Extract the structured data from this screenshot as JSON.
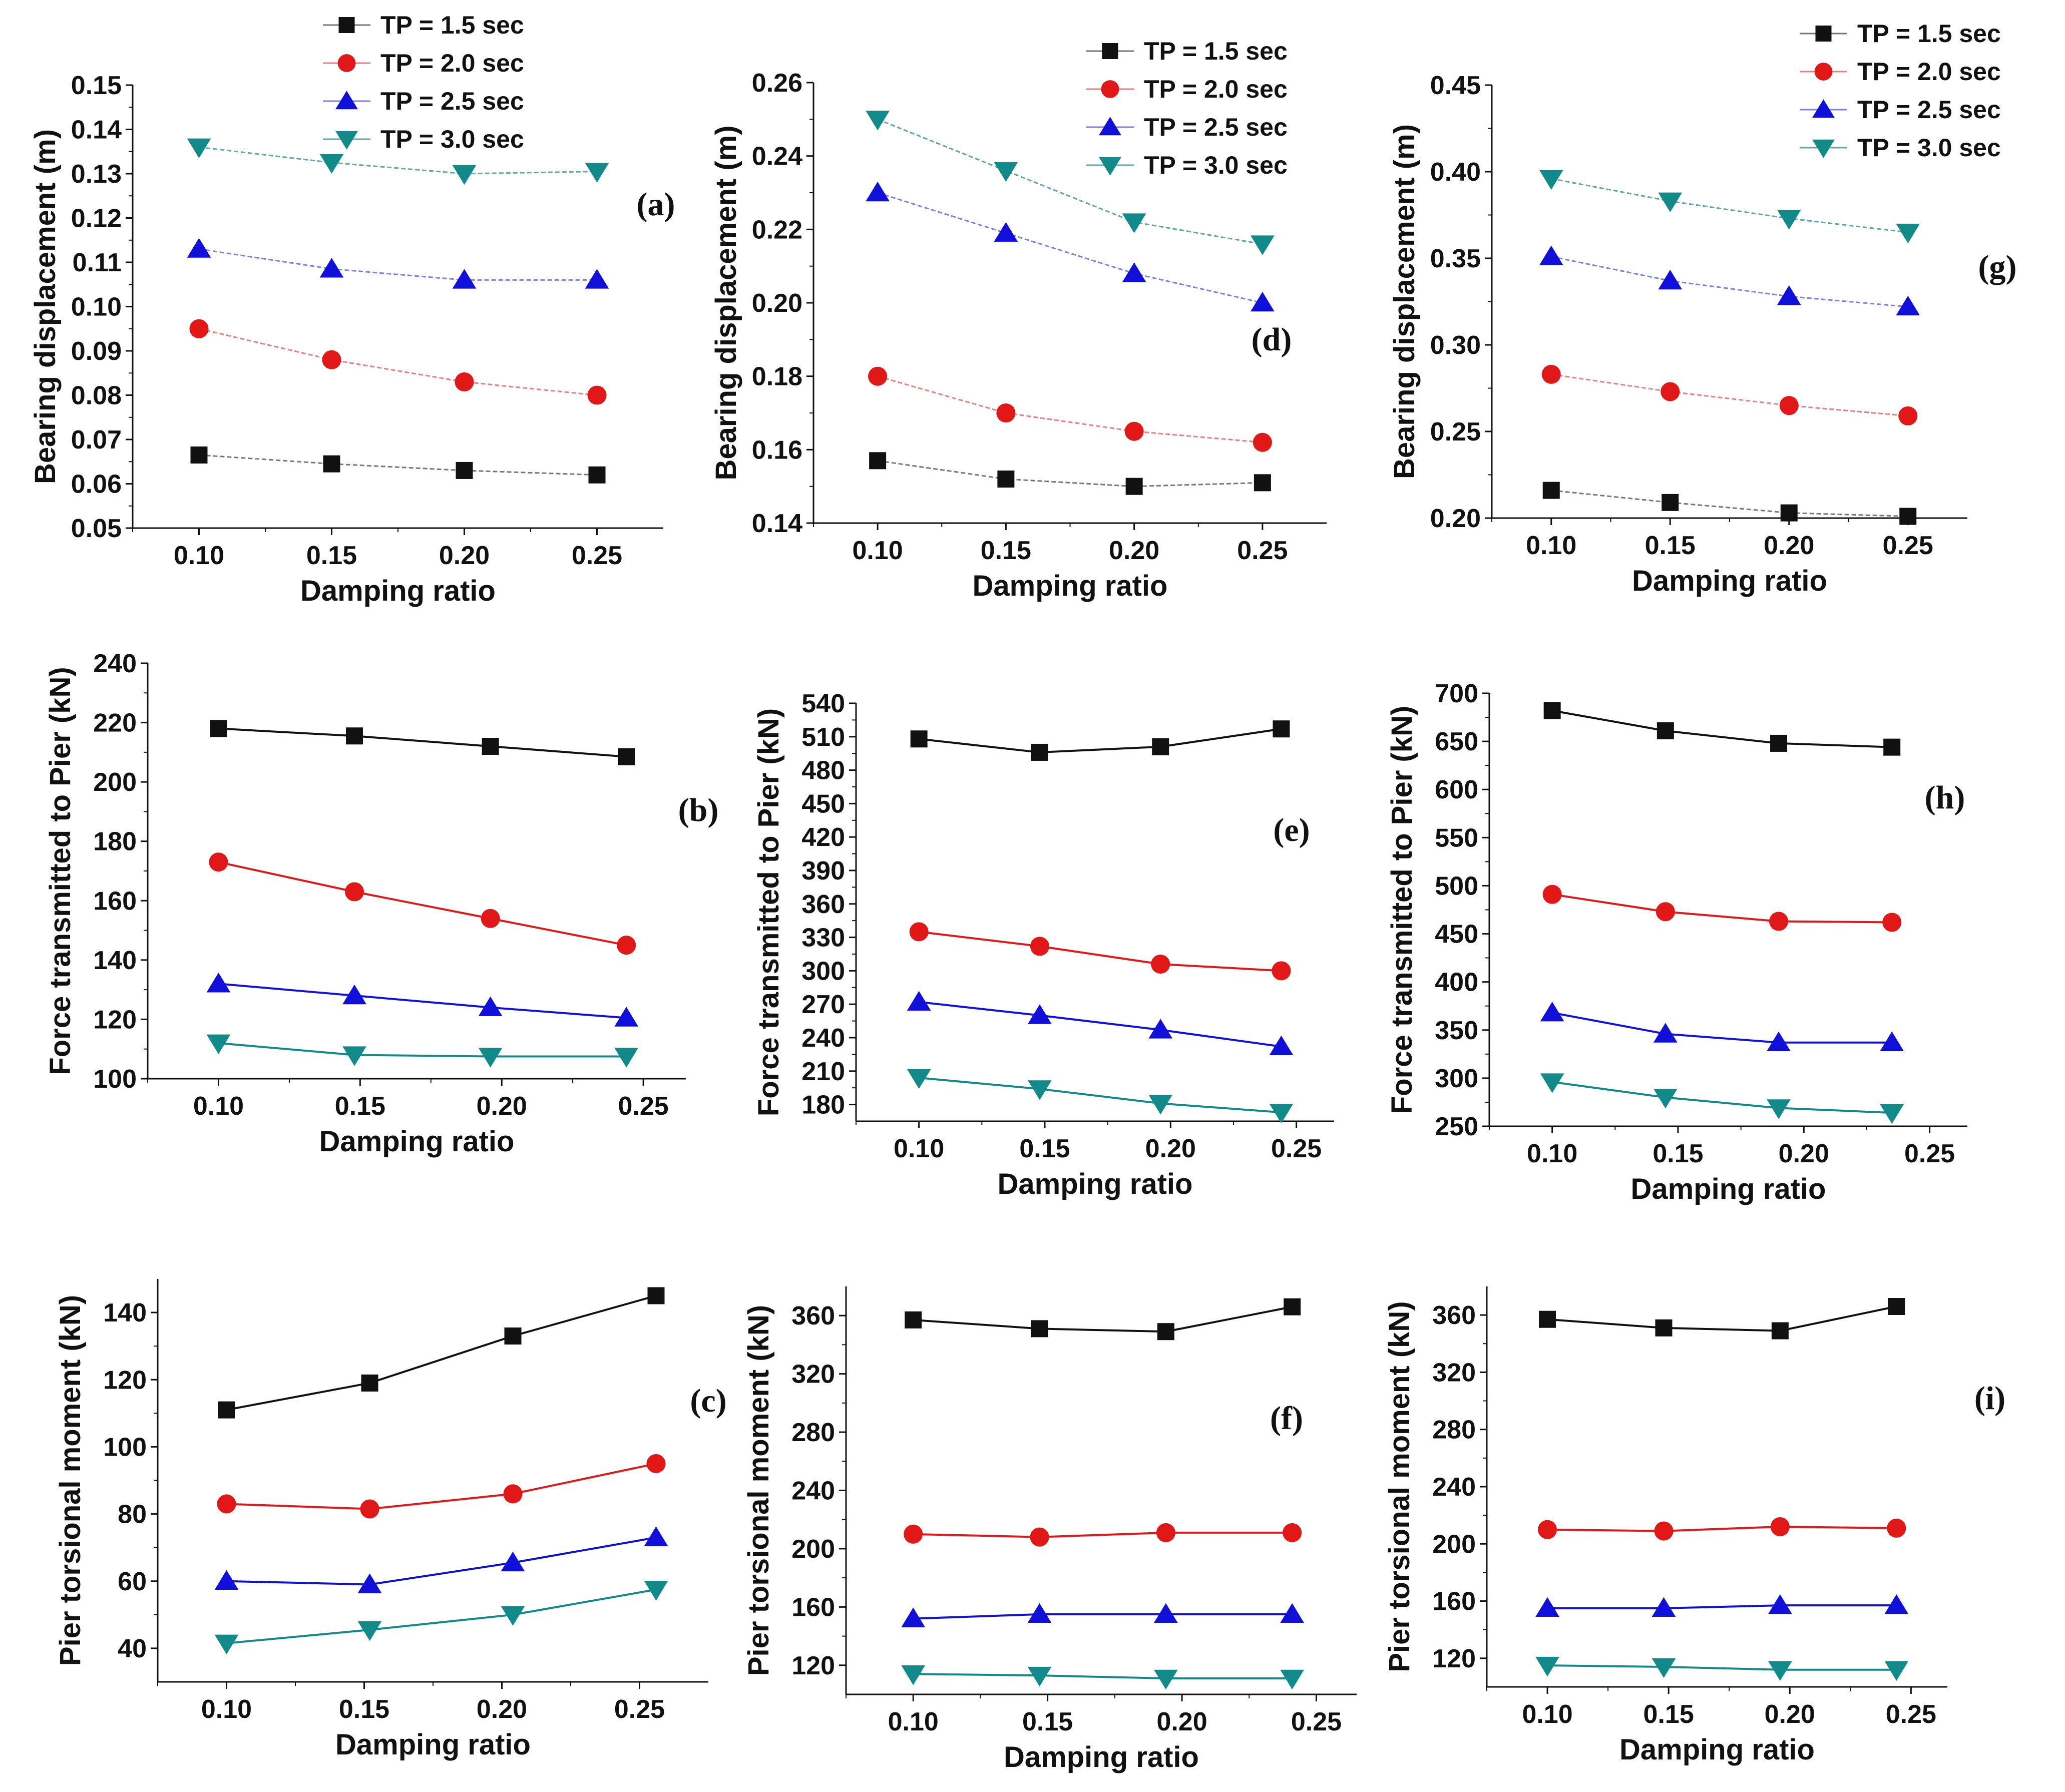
{
  "colors": {
    "s0": "#111111",
    "s1": "#e01818",
    "s2": "#1010d8",
    "s3": "#138a8a"
  },
  "markers": [
    "square",
    "circle",
    "triangle-up",
    "triangle-down"
  ],
  "chart_data": [
    {
      "id": "a",
      "type": "line",
      "panel_label": "(a)",
      "xlabel": "Damping ratio",
      "ylabel": "Bearing displacement (m)",
      "xlim": [
        0.075,
        0.275
      ],
      "ylim": [
        0.05,
        0.15
      ],
      "xticks": [
        "0.10",
        "0.15",
        "0.20",
        "0.25"
      ],
      "yticks": [
        "0.05",
        "0.06",
        "0.07",
        "0.08",
        "0.09",
        "0.10",
        "0.11",
        "0.12",
        "0.13",
        "0.14",
        "0.15"
      ],
      "x": [
        0.1,
        0.15,
        0.2,
        0.25
      ],
      "legend": [
        "TP = 1.5 sec",
        "TP = 2.0 sec",
        "TP = 2.5 sec",
        "TP = 3.0 sec"
      ],
      "series": [
        {
          "name": "TP = 1.5 sec",
          "values": [
            0.0665,
            0.0645,
            0.063,
            0.062
          ]
        },
        {
          "name": "TP = 2.0 sec",
          "values": [
            0.095,
            0.088,
            0.083,
            0.08
          ]
        },
        {
          "name": "TP = 2.5 sec",
          "values": [
            0.113,
            0.1085,
            0.106,
            0.106
          ]
        },
        {
          "name": "TP = 3.0 sec",
          "values": [
            0.136,
            0.1325,
            0.13,
            0.1305
          ]
        }
      ]
    },
    {
      "id": "d",
      "type": "line",
      "panel_label": "(d)",
      "xlabel": "Damping ratio",
      "ylabel": "Bearing displacement (m)",
      "xlim": [
        0.075,
        0.275
      ],
      "ylim": [
        0.14,
        0.26
      ],
      "xticks": [
        "0.10",
        "0.15",
        "0.20",
        "0.25"
      ],
      "yticks": [
        "0.14",
        "0.16",
        "0.18",
        "0.20",
        "0.22",
        "0.24",
        "0.26"
      ],
      "x": [
        0.1,
        0.15,
        0.2,
        0.25
      ],
      "legend": [
        "TP = 1.5 sec",
        "TP = 2.0 sec",
        "TP = 2.5 sec",
        "TP = 3.0 sec"
      ],
      "series": [
        {
          "name": "TP = 1.5 sec",
          "values": [
            0.157,
            0.152,
            0.15,
            0.151
          ]
        },
        {
          "name": "TP = 2.0 sec",
          "values": [
            0.18,
            0.17,
            0.165,
            0.162
          ]
        },
        {
          "name": "TP = 2.5 sec",
          "values": [
            0.23,
            0.219,
            0.208,
            0.2
          ]
        },
        {
          "name": "TP = 3.0 sec",
          "values": [
            0.25,
            0.236,
            0.222,
            0.216
          ]
        }
      ]
    },
    {
      "id": "g",
      "type": "line",
      "panel_label": "(g)",
      "xlabel": "Damping ratio",
      "ylabel": "Bearing displacement (m)",
      "xlim": [
        0.075,
        0.275
      ],
      "ylim": [
        0.2,
        0.45
      ],
      "xticks": [
        "0.10",
        "0.15",
        "0.20",
        "0.25"
      ],
      "yticks": [
        "0.20",
        "0.25",
        "0.30",
        "0.35",
        "0.40",
        "0.45"
      ],
      "x": [
        0.1,
        0.15,
        0.2,
        0.25
      ],
      "legend": [
        "TP = 1.5 sec",
        "TP = 2.0 sec",
        "TP = 2.5 sec",
        "TP = 3.0 sec"
      ],
      "series": [
        {
          "name": "TP = 1.5 sec",
          "values": [
            0.216,
            0.209,
            0.203,
            0.201
          ]
        },
        {
          "name": "TP = 2.0 sec",
          "values": [
            0.283,
            0.273,
            0.265,
            0.259
          ]
        },
        {
          "name": "TP = 2.5 sec",
          "values": [
            0.351,
            0.337,
            0.328,
            0.322
          ]
        },
        {
          "name": "TP = 3.0 sec",
          "values": [
            0.396,
            0.383,
            0.373,
            0.365
          ]
        }
      ]
    },
    {
      "id": "b",
      "type": "line",
      "panel_label": "(b)",
      "xlabel": "Damping ratio",
      "ylabel": "Force transmitted to Pier (kN)",
      "xlim": [
        0.075,
        0.265
      ],
      "ylim": [
        100,
        240
      ],
      "xticks": [
        "0.10",
        "0.15",
        "0.20",
        "0.25"
      ],
      "yticks": [
        "100",
        "120",
        "140",
        "160",
        "180",
        "200",
        "220",
        "240"
      ],
      "x": [
        0.1,
        0.148,
        0.196,
        0.244
      ],
      "series": [
        {
          "name": "TP = 1.5 sec",
          "values": [
            218,
            215.5,
            212,
            208.5
          ]
        },
        {
          "name": "TP = 2.0 sec",
          "values": [
            173,
            163,
            154,
            145
          ]
        },
        {
          "name": "TP = 2.5 sec",
          "values": [
            132,
            128,
            124,
            120.5
          ]
        },
        {
          "name": "TP = 3.0 sec",
          "values": [
            112,
            108,
            107.5,
            107.5
          ]
        }
      ]
    },
    {
      "id": "e",
      "type": "line",
      "panel_label": "(e)",
      "xlabel": "Damping ratio",
      "ylabel": "Force transmitted to Pier (kN)",
      "xlim": [
        0.075,
        0.265
      ],
      "ylim": [
        165,
        540
      ],
      "xticks": [
        "0.10",
        "0.15",
        "0.20",
        "0.25"
      ],
      "yticks": [
        "180",
        "210",
        "240",
        "270",
        "300",
        "330",
        "360",
        "390",
        "420",
        "450",
        "480",
        "510",
        "540"
      ],
      "x": [
        0.1,
        0.148,
        0.196,
        0.244
      ],
      "series": [
        {
          "name": "TP = 1.5 sec",
          "values": [
            508,
            496,
            501,
            517
          ]
        },
        {
          "name": "TP = 2.0 sec",
          "values": [
            335,
            322,
            306,
            300
          ]
        },
        {
          "name": "TP = 2.5 sec",
          "values": [
            272,
            260,
            247,
            232
          ]
        },
        {
          "name": "TP = 3.0 sec",
          "values": [
            204,
            194,
            181,
            173
          ]
        }
      ]
    },
    {
      "id": "h",
      "type": "line",
      "panel_label": "(h)",
      "xlabel": "Damping ratio",
      "ylabel": "Force transmitted to Pier (kN)",
      "xlim": [
        0.075,
        0.265
      ],
      "ylim": [
        250,
        700
      ],
      "xticks": [
        "0.10",
        "0.15",
        "0.20",
        "0.25"
      ],
      "yticks": [
        "250",
        "300",
        "350",
        "400",
        "450",
        "500",
        "550",
        "600",
        "650",
        "700"
      ],
      "x": [
        0.1,
        0.145,
        0.19,
        0.235
      ],
      "series": [
        {
          "name": "TP = 1.5 sec",
          "values": [
            682,
            661,
            648,
            644
          ]
        },
        {
          "name": "TP = 2.0 sec",
          "values": [
            491,
            473,
            463,
            462
          ]
        },
        {
          "name": "TP = 2.5 sec",
          "values": [
            368,
            346,
            337,
            337
          ]
        },
        {
          "name": "TP = 3.0 sec",
          "values": [
            296,
            280,
            269,
            264
          ]
        }
      ]
    },
    {
      "id": "c",
      "type": "line",
      "panel_label": "(c)",
      "xlabel": "Damping ratio",
      "ylabel": "Pier torsional moment (kN)",
      "xlim": [
        0.075,
        0.275
      ],
      "ylim": [
        30,
        150
      ],
      "xticks": [
        "0.10",
        "0.15",
        "0.20",
        "0.25"
      ],
      "yticks": [
        "40",
        "60",
        "80",
        "100",
        "120",
        "140"
      ],
      "x": [
        0.1,
        0.152,
        0.204,
        0.256
      ],
      "series": [
        {
          "name": "TP = 1.5 sec",
          "values": [
            111,
            119,
            133,
            145
          ]
        },
        {
          "name": "TP = 2.0 sec",
          "values": [
            83,
            81.5,
            86,
            95
          ]
        },
        {
          "name": "TP = 2.5 sec",
          "values": [
            60,
            59,
            65.5,
            73
          ]
        },
        {
          "name": "TP = 3.0 sec",
          "values": [
            41.5,
            45.5,
            50,
            57.5
          ]
        }
      ]
    },
    {
      "id": "f",
      "type": "line",
      "panel_label": "(f)",
      "xlabel": "Damping ratio",
      "ylabel": "Pier torsional moment (kN)",
      "xlim": [
        0.075,
        0.265
      ],
      "ylim": [
        100,
        380
      ],
      "xticks": [
        "0.10",
        "0.15",
        "0.20",
        "0.25"
      ],
      "yticks": [
        "120",
        "160",
        "200",
        "240",
        "280",
        "320",
        "360"
      ],
      "x": [
        0.1,
        0.147,
        0.194,
        0.241
      ],
      "series": [
        {
          "name": "TP = 1.5 sec",
          "values": [
            357,
            351,
            349,
            366
          ]
        },
        {
          "name": "TP = 2.0 sec",
          "values": [
            210,
            208,
            211,
            211
          ]
        },
        {
          "name": "TP = 2.5 sec",
          "values": [
            152,
            155,
            155,
            155
          ]
        },
        {
          "name": "TP = 3.0 sec",
          "values": [
            114,
            113,
            111,
            111
          ]
        }
      ]
    },
    {
      "id": "i",
      "type": "line",
      "panel_label": "(i)",
      "xlabel": "Damping ratio",
      "ylabel": "Pier torsional moment (kN)",
      "xlim": [
        0.075,
        0.265
      ],
      "ylim": [
        100,
        380
      ],
      "xticks": [
        "0.10",
        "0.15",
        "0.20",
        "0.25"
      ],
      "yticks": [
        "120",
        "160",
        "200",
        "240",
        "280",
        "320",
        "360"
      ],
      "x": [
        0.1,
        0.148,
        0.196,
        0.244
      ],
      "series": [
        {
          "name": "TP = 1.5 sec",
          "values": [
            357,
            351,
            349,
            366
          ]
        },
        {
          "name": "TP = 2.0 sec",
          "values": [
            210,
            209,
            212,
            211
          ]
        },
        {
          "name": "TP = 2.5 sec",
          "values": [
            155,
            155,
            157,
            157
          ]
        },
        {
          "name": "TP = 3.0 sec",
          "values": [
            115,
            114,
            112,
            112
          ]
        }
      ]
    }
  ]
}
